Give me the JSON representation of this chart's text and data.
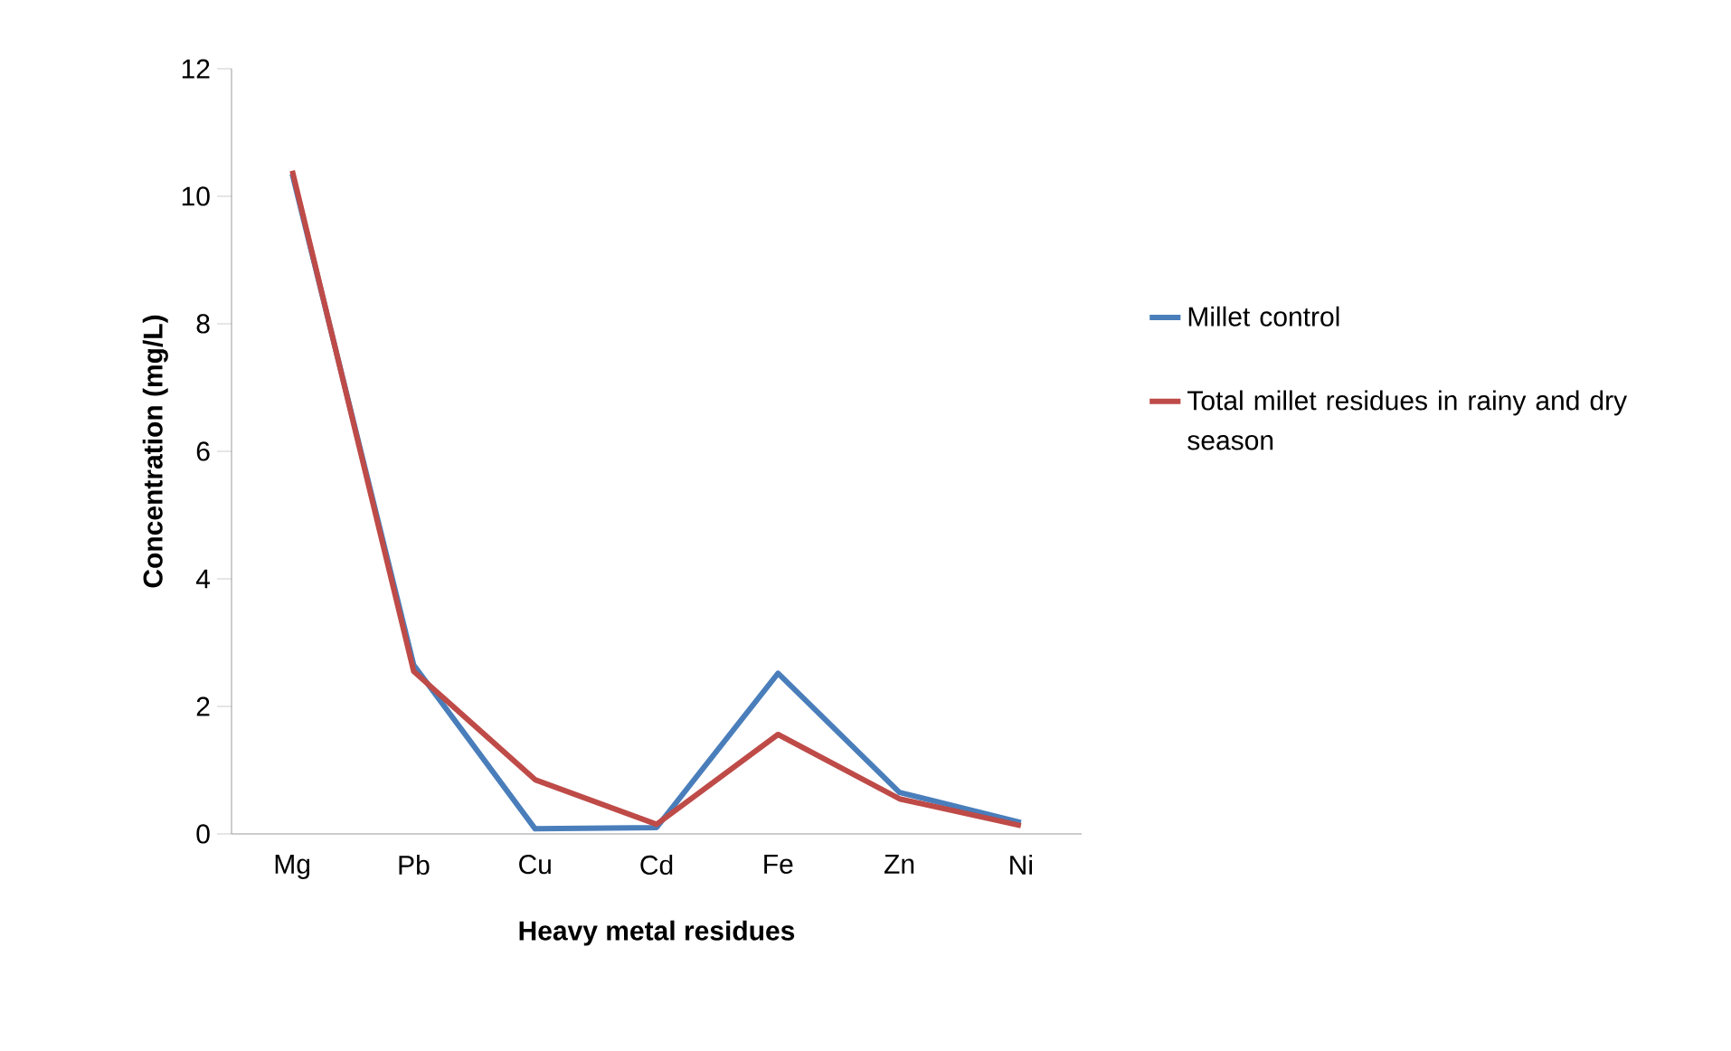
{
  "chart_data": {
    "type": "line",
    "xlabel": "Heavy metal residues",
    "ylabel": "Concentration (mg/L)",
    "categories": [
      "Mg",
      "Pb",
      "Cu",
      "Cd",
      "Fe",
      "Zn",
      "Ni"
    ],
    "series": [
      {
        "name": "Millet control",
        "color": "#4a7ebb",
        "values": [
          10.35,
          2.65,
          0.08,
          0.1,
          2.52,
          0.65,
          0.18
        ]
      },
      {
        "name": "Total millet residues in rainy and dry season",
        "color": "#be4b48",
        "values": [
          10.4,
          2.55,
          0.85,
          0.15,
          1.56,
          0.55,
          0.13
        ]
      }
    ],
    "ylim": [
      0,
      12
    ],
    "yticks": [
      0,
      2,
      4,
      6,
      8,
      10,
      12
    ],
    "grid": false,
    "legend": "right",
    "marker": "none",
    "line_style": "solid"
  }
}
